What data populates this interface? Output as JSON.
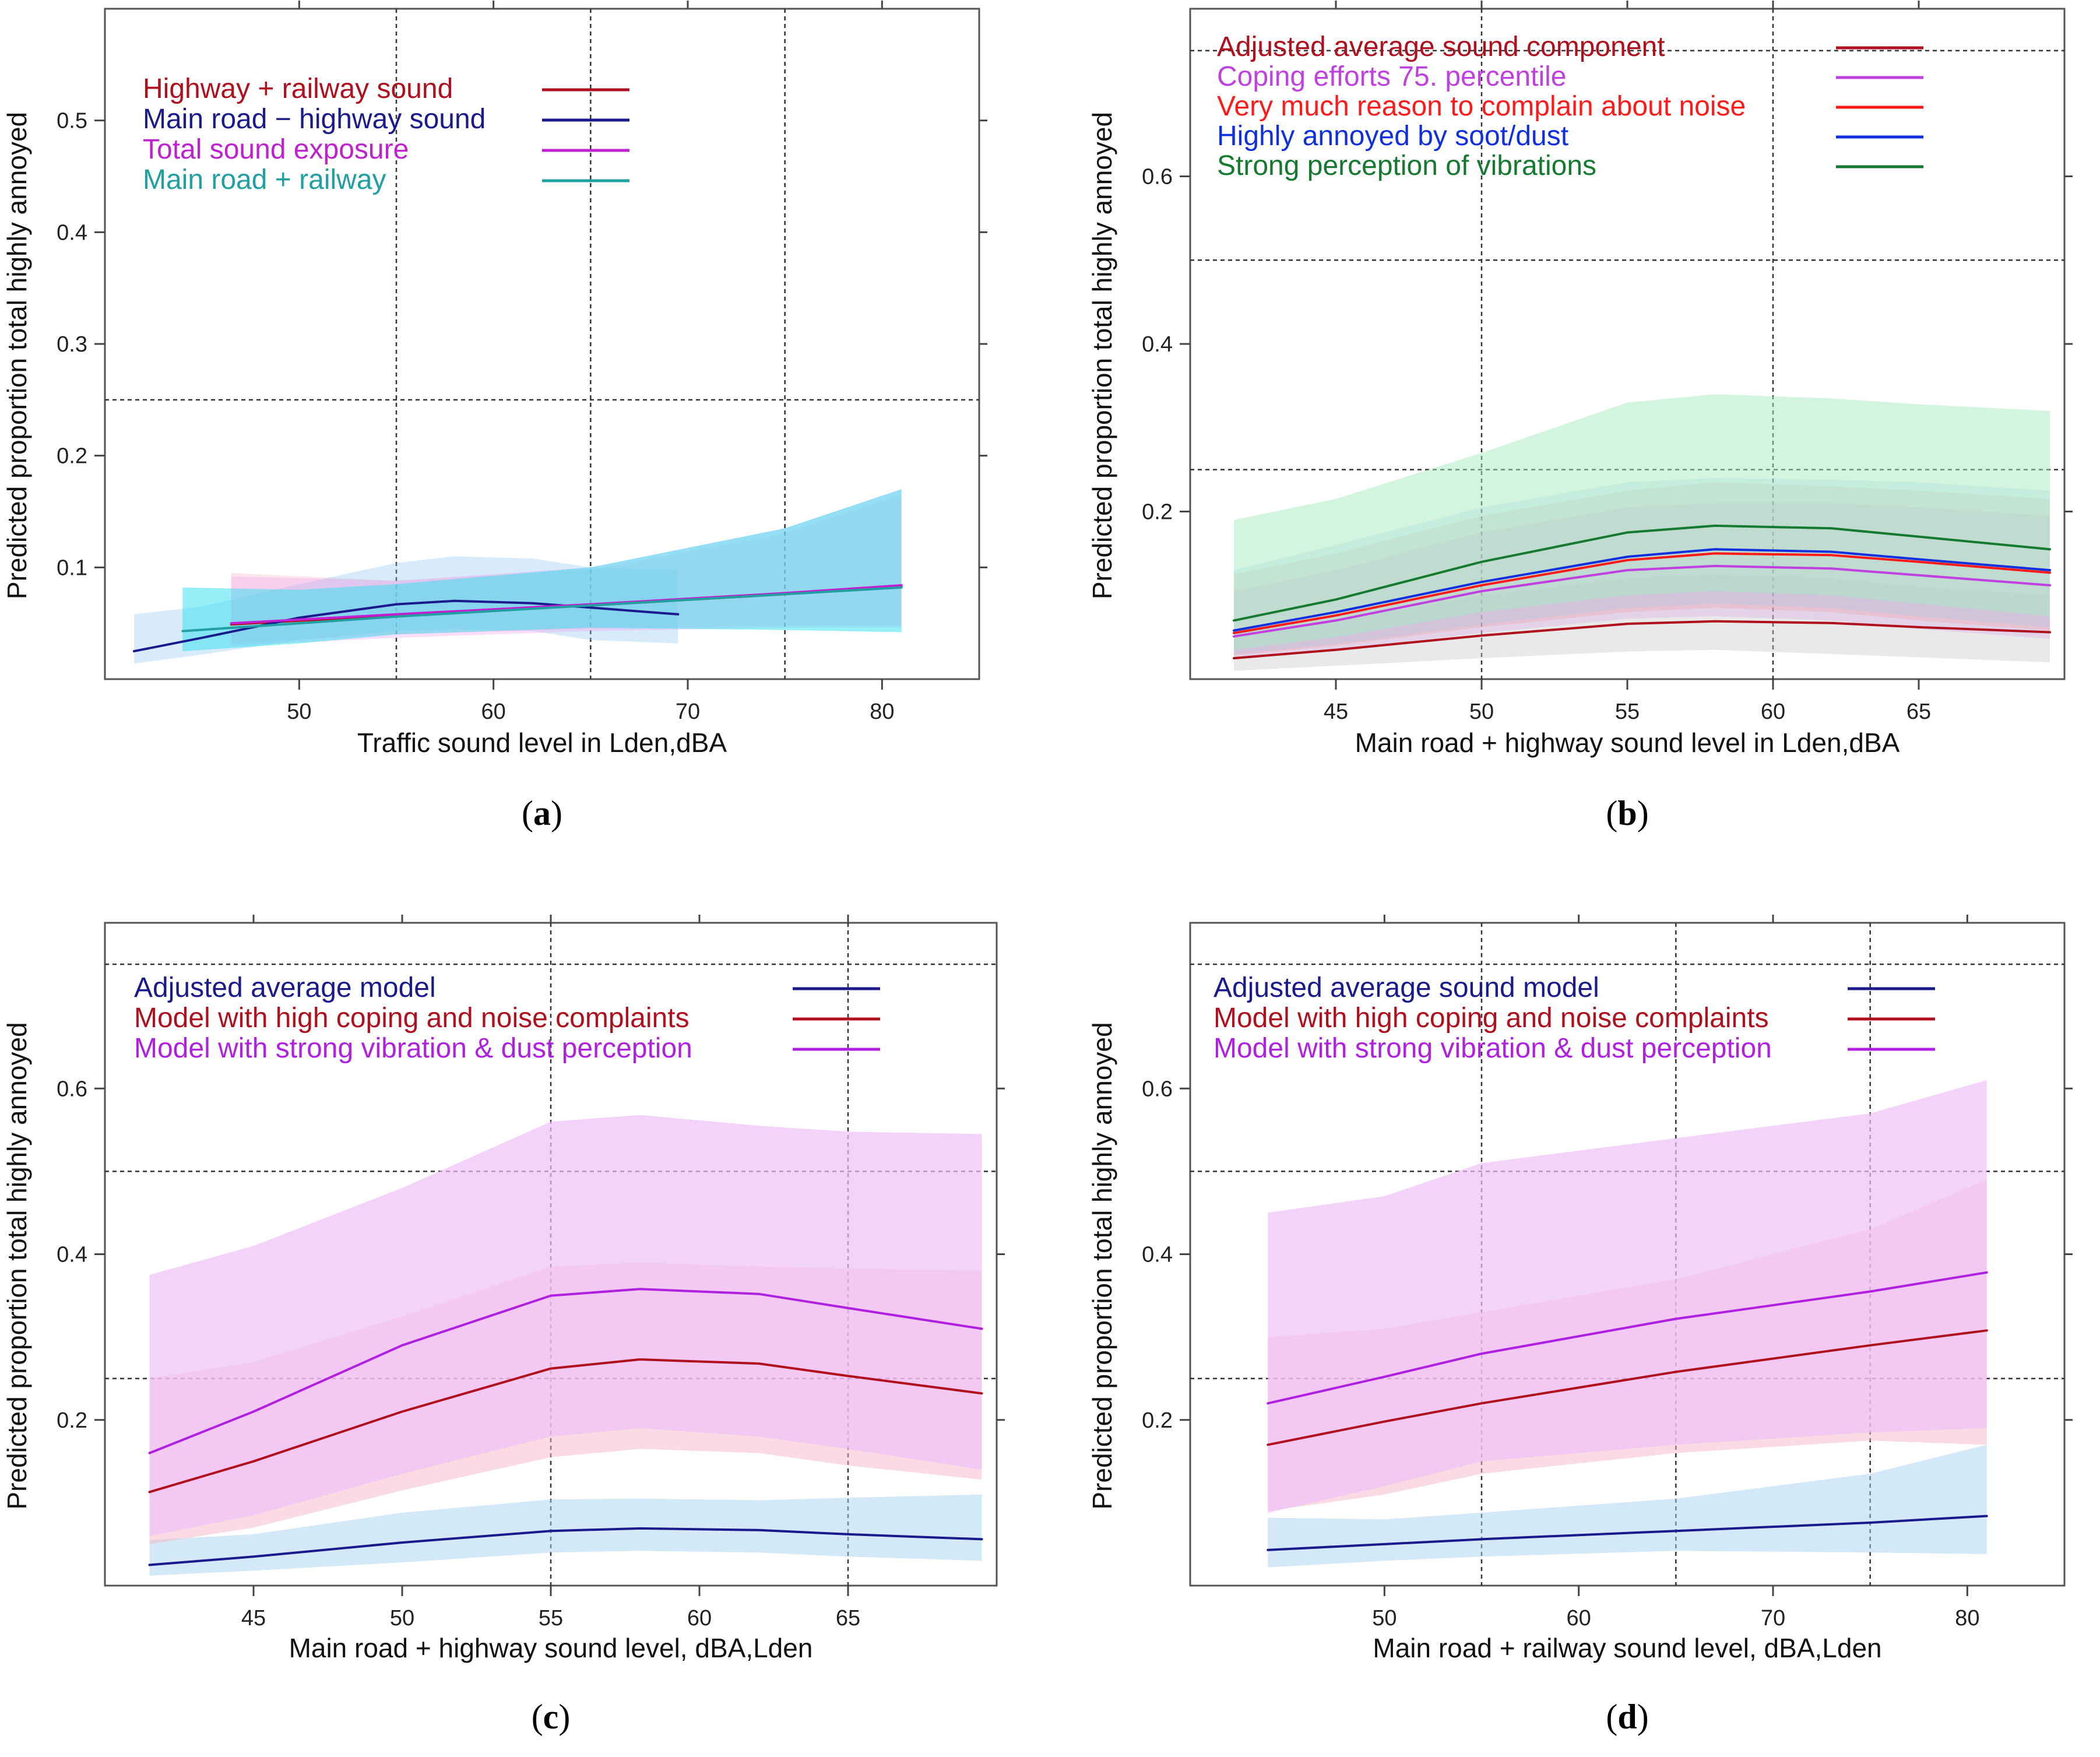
{
  "figure": {
    "panels": [
      "(a)",
      "(b)",
      "(c)",
      "(d)"
    ]
  },
  "chart_data": [
    {
      "type": "line",
      "panel": "(a)",
      "xlabel": "Traffic sound level in Lden,dBA",
      "ylabel": "Predicted proportion total highly annoyed",
      "xlim": [
        40,
        85
      ],
      "ylim": [
        0,
        0.6
      ],
      "xticks": [
        50,
        60,
        70,
        80
      ],
      "yticks": [
        0.1,
        0.2,
        0.3,
        0.4,
        0.5
      ],
      "hlines": [
        0.25
      ],
      "vlines": [
        55,
        65,
        75
      ],
      "legend_position": "top-left",
      "series": [
        {
          "name": "Highway + railway sound",
          "color": "#b0101e",
          "band_color": "#f7b6c8",
          "band_opacity": 0.35,
          "x": [
            46.5,
            55,
            65,
            75,
            81
          ],
          "y": [
            0.049,
            0.057,
            0.066,
            0.076,
            0.083
          ],
          "lower": [
            0.032,
            0.04,
            0.045,
            0.048,
            0.048
          ],
          "upper": [
            0.095,
            0.088,
            0.098,
            0.13,
            0.165
          ]
        },
        {
          "name": "Main road − highway sound",
          "color": "#1a1a8c",
          "band_color": "#8cc6f0",
          "band_opacity": 0.35,
          "x": [
            41.5,
            45,
            50,
            55,
            58,
            62,
            65,
            69.5
          ],
          "y": [
            0.025,
            0.037,
            0.055,
            0.067,
            0.07,
            0.068,
            0.064,
            0.058
          ],
          "lower": [
            0.014,
            0.022,
            0.035,
            0.043,
            0.045,
            0.043,
            0.035,
            0.032
          ],
          "upper": [
            0.058,
            0.065,
            0.085,
            0.104,
            0.11,
            0.108,
            0.1,
            0.098
          ]
        },
        {
          "name": "Total sound exposure",
          "color": "#c020d0",
          "band_color": "#f0a0f0",
          "band_opacity": 0.35,
          "x": [
            46.5,
            55,
            65,
            75,
            81
          ],
          "y": [
            0.05,
            0.058,
            0.067,
            0.077,
            0.084
          ],
          "lower": [
            0.03,
            0.037,
            0.043,
            0.046,
            0.046
          ],
          "upper": [
            0.092,
            0.088,
            0.1,
            0.135,
            0.17
          ]
        },
        {
          "name": "Main road + railway",
          "color": "#20a0a0",
          "band_color": "#40e0f0",
          "band_opacity": 0.55,
          "x": [
            44,
            50,
            55,
            65,
            75,
            81
          ],
          "y": [
            0.043,
            0.05,
            0.056,
            0.066,
            0.076,
            0.082
          ],
          "lower": [
            0.025,
            0.032,
            0.04,
            0.046,
            0.044,
            0.042
          ],
          "upper": [
            0.082,
            0.08,
            0.085,
            0.1,
            0.135,
            0.17
          ]
        }
      ]
    },
    {
      "type": "line",
      "panel": "(b)",
      "xlabel": "Main road + highway sound level in Lden,dBA",
      "ylabel": "Predicted proportion total highly annoyed",
      "xlim": [
        40,
        70
      ],
      "ylim": [
        0,
        0.8
      ],
      "xticks": [
        45,
        50,
        55,
        60,
        65
      ],
      "yticks": [
        0.2,
        0.4,
        0.6
      ],
      "hlines": [
        0.25,
        0.5,
        0.75
      ],
      "vlines": [
        50,
        60
      ],
      "legend_position": "top",
      "series": [
        {
          "name": "Adjusted average sound component",
          "color": "#b0101e",
          "band_color": "#c8c8c8",
          "band_opacity": 0.4,
          "x": [
            41.5,
            45,
            50,
            55,
            58,
            62,
            65,
            69.5
          ],
          "y": [
            0.025,
            0.035,
            0.052,
            0.066,
            0.069,
            0.067,
            0.062,
            0.056
          ],
          "lower": [
            0.01,
            0.016,
            0.025,
            0.033,
            0.035,
            0.03,
            0.026,
            0.02
          ],
          "upper": [
            0.055,
            0.07,
            0.1,
            0.12,
            0.125,
            0.12,
            0.11,
            0.1
          ]
        },
        {
          "name": "Coping efforts 75. percentile",
          "color": "#c040e0",
          "band_color": "#d8a0e8",
          "band_opacity": 0.3,
          "x": [
            41.5,
            45,
            50,
            55,
            58,
            62,
            65,
            69.5
          ],
          "y": [
            0.051,
            0.07,
            0.105,
            0.13,
            0.135,
            0.132,
            0.124,
            0.112
          ],
          "lower": [
            0.025,
            0.035,
            0.055,
            0.072,
            0.075,
            0.07,
            0.06,
            0.048
          ],
          "upper": [
            0.105,
            0.13,
            0.175,
            0.205,
            0.21,
            0.21,
            0.205,
            0.195
          ]
        },
        {
          "name": "Very much reason to complain about noise",
          "color": "#ff1a1a",
          "band_color": "#f0a0a0",
          "band_opacity": 0.3,
          "x": [
            41.5,
            45,
            50,
            55,
            58,
            62,
            65,
            69.5
          ],
          "y": [
            0.055,
            0.076,
            0.112,
            0.142,
            0.15,
            0.148,
            0.14,
            0.127
          ],
          "lower": [
            0.028,
            0.04,
            0.062,
            0.08,
            0.085,
            0.08,
            0.07,
            0.058
          ],
          "upper": [
            0.125,
            0.15,
            0.195,
            0.225,
            0.235,
            0.23,
            0.225,
            0.215
          ]
        },
        {
          "name": "Highly annoyed by soot/dust",
          "color": "#1030e0",
          "band_color": "#a0c8f0",
          "band_opacity": 0.3,
          "x": [
            41.5,
            45,
            50,
            55,
            58,
            62,
            65,
            69.5
          ],
          "y": [
            0.058,
            0.08,
            0.116,
            0.146,
            0.155,
            0.152,
            0.143,
            0.13
          ],
          "lower": [
            0.03,
            0.042,
            0.065,
            0.085,
            0.09,
            0.085,
            0.075,
            0.062
          ],
          "upper": [
            0.13,
            0.16,
            0.205,
            0.235,
            0.24,
            0.238,
            0.235,
            0.225
          ]
        },
        {
          "name": "Strong perception of vibrations",
          "color": "#157a30",
          "band_color": "#a8ecc0",
          "band_opacity": 0.5,
          "x": [
            41.5,
            45,
            50,
            55,
            58,
            62,
            65,
            69.5
          ],
          "y": [
            0.07,
            0.095,
            0.14,
            0.175,
            0.183,
            0.18,
            0.17,
            0.155
          ],
          "lower": [
            0.035,
            0.05,
            0.08,
            0.1,
            0.105,
            0.1,
            0.09,
            0.075
          ],
          "upper": [
            0.19,
            0.215,
            0.27,
            0.33,
            0.34,
            0.335,
            0.328,
            0.32
          ]
        }
      ]
    },
    {
      "type": "line",
      "panel": "(c)",
      "xlabel": "Main road + highway sound level, dBA,Lden",
      "ylabel": "Predicted proportion total highly annoyed",
      "xlim": [
        40,
        70
      ],
      "ylim": [
        0,
        0.8
      ],
      "xticks": [
        45,
        50,
        55,
        60,
        65
      ],
      "yticks": [
        0.2,
        0.4,
        0.6
      ],
      "hlines": [
        0.25,
        0.5,
        0.75
      ],
      "vlines": [
        55,
        65
      ],
      "legend_position": "top",
      "series": [
        {
          "name": "Adjusted average model",
          "color": "#1a1a8c",
          "band_color": "#a8d4f0",
          "band_opacity": 0.5,
          "x": [
            41.5,
            45,
            50,
            55,
            58,
            62,
            65,
            69.5
          ],
          "y": [
            0.025,
            0.035,
            0.052,
            0.066,
            0.069,
            0.067,
            0.062,
            0.056
          ],
          "lower": [
            0.012,
            0.018,
            0.028,
            0.04,
            0.042,
            0.04,
            0.035,
            0.03
          ],
          "upper": [
            0.055,
            0.062,
            0.088,
            0.104,
            0.105,
            0.103,
            0.106,
            0.11
          ]
        },
        {
          "name": "Model with high coping and noise complaints",
          "color": "#b0101e",
          "band_color": "#f6b6c8",
          "band_opacity": 0.5,
          "x": [
            41.5,
            45,
            50,
            55,
            58,
            62,
            65,
            69.5
          ],
          "y": [
            0.113,
            0.15,
            0.21,
            0.262,
            0.273,
            0.268,
            0.253,
            0.232
          ],
          "lower": [
            0.05,
            0.07,
            0.115,
            0.155,
            0.165,
            0.16,
            0.145,
            0.128
          ],
          "upper": [
            0.25,
            0.27,
            0.325,
            0.385,
            0.39,
            0.385,
            0.383,
            0.38
          ]
        },
        {
          "name": "Model with strong vibration & dust perception",
          "color": "#b020e0",
          "band_color": "#f0c0f8",
          "band_opacity": 0.7,
          "x": [
            41.5,
            45,
            50,
            55,
            58,
            62,
            65,
            69.5
          ],
          "y": [
            0.16,
            0.21,
            0.29,
            0.35,
            0.358,
            0.352,
            0.335,
            0.31
          ],
          "lower": [
            0.06,
            0.085,
            0.135,
            0.18,
            0.19,
            0.18,
            0.165,
            0.14
          ],
          "upper": [
            0.375,
            0.41,
            0.48,
            0.56,
            0.568,
            0.555,
            0.548,
            0.545
          ]
        }
      ]
    },
    {
      "type": "line",
      "panel": "(d)",
      "xlabel": "Main road + railway sound level, dBA,Lden",
      "ylabel": "Predicted proportion total highly annoyed",
      "xlim": [
        40,
        85
      ],
      "ylim": [
        0,
        0.8
      ],
      "xticks": [
        50,
        60,
        70,
        80
      ],
      "yticks": [
        0.2,
        0.4,
        0.6
      ],
      "hlines": [
        0.25,
        0.5,
        0.75
      ],
      "vlines": [
        55,
        65,
        75
      ],
      "legend_position": "top",
      "series": [
        {
          "name": "Adjusted average sound model",
          "color": "#1a1a8c",
          "band_color": "#a8d4f0",
          "band_opacity": 0.5,
          "x": [
            44,
            50,
            55,
            65,
            75,
            81
          ],
          "y": [
            0.043,
            0.05,
            0.056,
            0.066,
            0.076,
            0.084
          ],
          "lower": [
            0.022,
            0.03,
            0.035,
            0.042,
            0.04,
            0.038
          ],
          "upper": [
            0.082,
            0.08,
            0.088,
            0.105,
            0.135,
            0.17
          ]
        },
        {
          "name": "Model with high coping and noise complaints",
          "color": "#b0101e",
          "band_color": "#f6b6c8",
          "band_opacity": 0.5,
          "x": [
            44,
            50,
            55,
            65,
            75,
            81
          ],
          "y": [
            0.17,
            0.198,
            0.22,
            0.258,
            0.29,
            0.308
          ],
          "lower": [
            0.09,
            0.11,
            0.135,
            0.16,
            0.175,
            0.17
          ],
          "upper": [
            0.3,
            0.31,
            0.33,
            0.37,
            0.43,
            0.49
          ]
        },
        {
          "name": "Model with strong vibration & dust perception",
          "color": "#b020e0",
          "band_color": "#f0c0f8",
          "band_opacity": 0.7,
          "x": [
            44,
            50,
            55,
            65,
            75,
            81
          ],
          "y": [
            0.22,
            0.252,
            0.28,
            0.322,
            0.355,
            0.378
          ],
          "lower": [
            0.088,
            0.12,
            0.15,
            0.17,
            0.185,
            0.19
          ],
          "upper": [
            0.45,
            0.47,
            0.51,
            0.54,
            0.57,
            0.61
          ]
        }
      ]
    }
  ]
}
